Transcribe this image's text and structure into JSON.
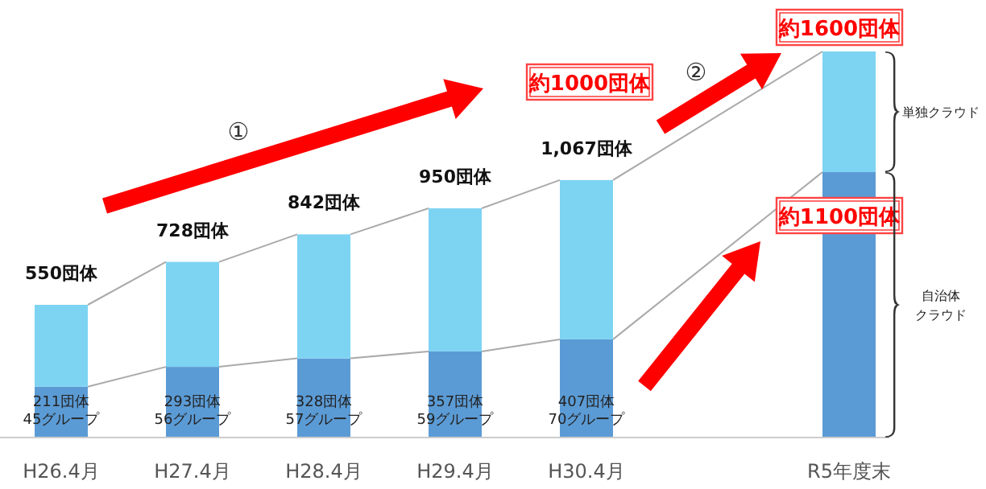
{
  "chart_data": {
    "type": "bar",
    "stacked": true,
    "categories": [
      "H26.4月",
      "H27.4月",
      "H28.4月",
      "H29.4月",
      "H30.4月",
      null,
      "R5年度末"
    ],
    "tick_labels": "x",
    "legend": false,
    "series": [
      {
        "name": "自治体クラウド",
        "color": "#5b9bd5",
        "values": [
          211,
          293,
          328,
          357,
          407,
          null,
          1100
        ],
        "value_labels": [
          "211団体\n45グループ",
          "293団体\n56グループ",
          "328団体\n57グループ",
          "357団体\n59グループ",
          "407団体\n70グループ",
          null,
          "約1100団体"
        ]
      },
      {
        "name": "単独クラウド",
        "color": "#7dd3f2",
        "values": [
          339,
          435,
          514,
          593,
          660,
          null,
          500
        ]
      }
    ],
    "totals": [
      "550団体",
      "728団体",
      "842団体",
      "950団体",
      "1,067団体",
      null,
      "約1600団体"
    ],
    "annotations": [
      "①",
      "約1000団体",
      "②"
    ]
  }
}
